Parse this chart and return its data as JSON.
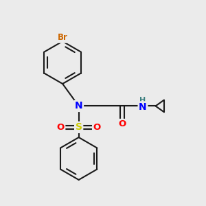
{
  "bg_color": "#ebebeb",
  "bond_color": "#1a1a1a",
  "colors": {
    "Br": "#cc6600",
    "N": "#0000ff",
    "O": "#ff0000",
    "S": "#cccc00",
    "H": "#3d8080",
    "C": "#1a1a1a"
  },
  "figsize": [
    3.0,
    3.0
  ],
  "dpi": 100
}
